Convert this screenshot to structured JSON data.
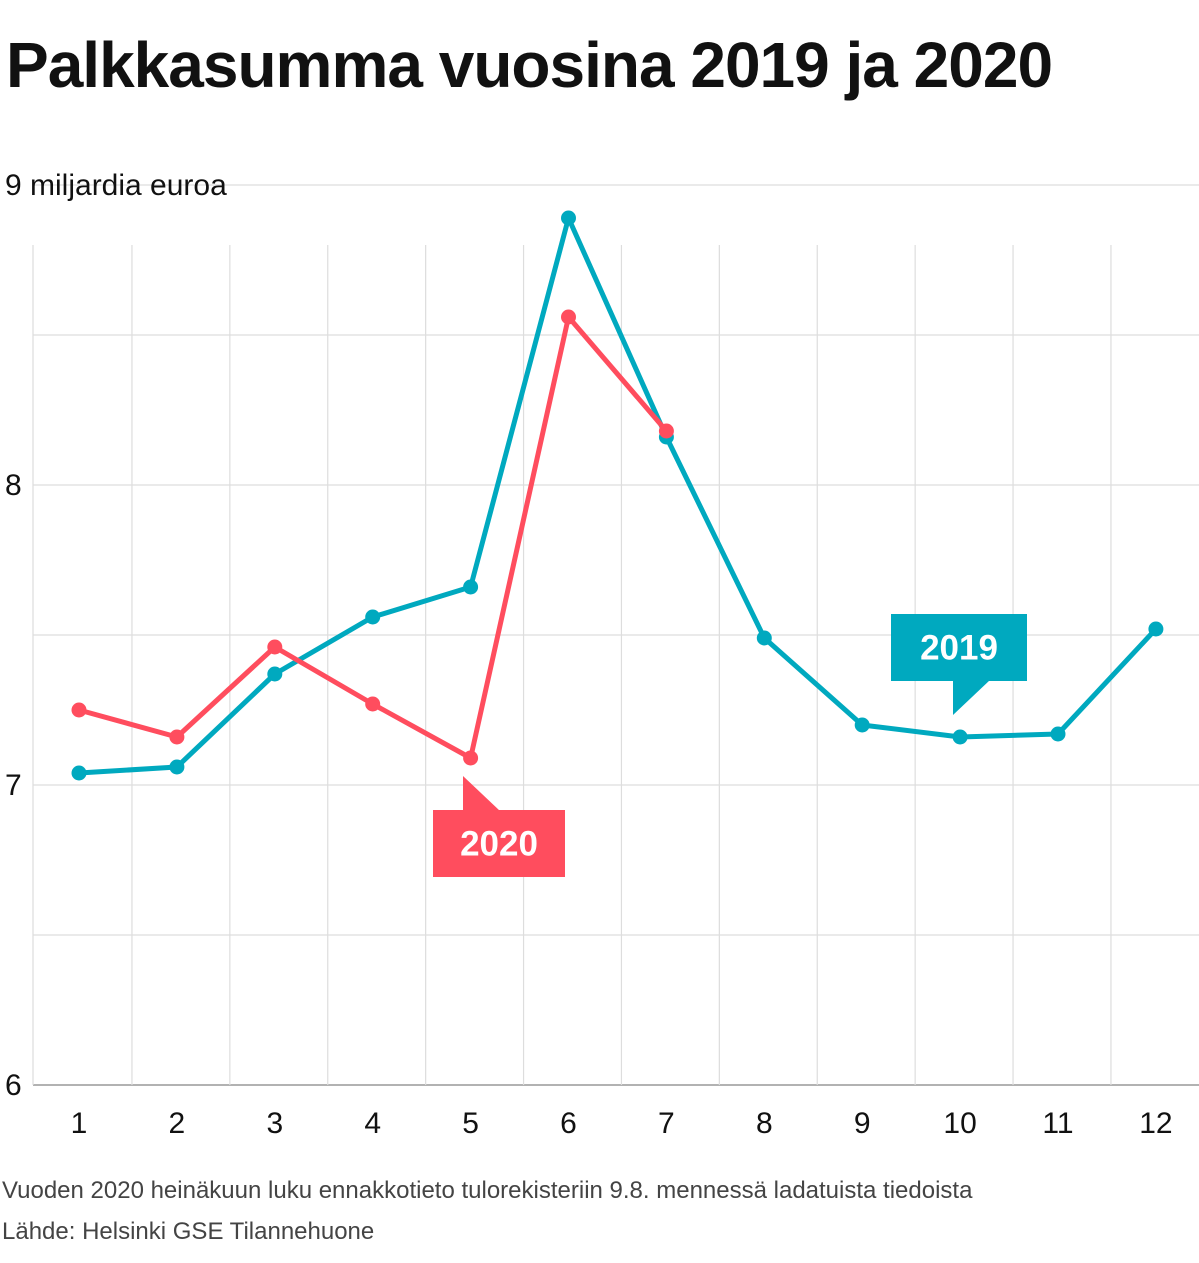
{
  "chart_data": {
    "type": "line",
    "title": "Palkkasumma vuosina 2019 ja 2020",
    "ylabel": "9 miljardia euroa",
    "ylim": [
      6,
      9
    ],
    "yticks": [
      {
        "value": 9,
        "label": "9 miljardia euroa"
      },
      {
        "value": 8,
        "label": "8"
      },
      {
        "value": 7,
        "label": "7"
      },
      {
        "value": 6,
        "label": "6"
      }
    ],
    "ygrid": [
      6,
      6.5,
      7,
      7.5,
      8,
      8.5,
      9
    ],
    "categories": [
      "1",
      "2",
      "3",
      "4",
      "5",
      "6",
      "7",
      "8",
      "9",
      "10",
      "11",
      "12"
    ],
    "series": [
      {
        "name": "2019",
        "color": "#00a9bf",
        "values": [
          7.04,
          7.06,
          7.37,
          7.56,
          7.66,
          8.89,
          8.16,
          7.49,
          7.2,
          7.16,
          7.17,
          7.52
        ]
      },
      {
        "name": "2020",
        "color": "#ff4d5e",
        "values": [
          7.25,
          7.16,
          7.46,
          7.27,
          7.09,
          8.56,
          8.18,
          null,
          null,
          null,
          null,
          null
        ]
      }
    ],
    "grid": true
  },
  "footnote": "Vuoden 2020 heinäkuun luku ennakkotieto tulorekisteriin 9.8. mennessä ladatuista tiedoista",
  "source": "Lähde: Helsinki GSE Tilannehuone"
}
